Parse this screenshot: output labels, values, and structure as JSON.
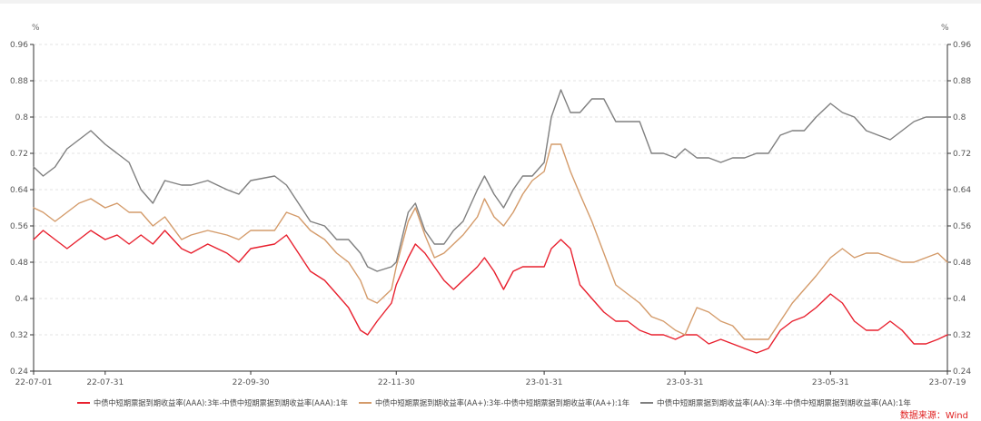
{
  "chart_data": {
    "type": "line",
    "y_unit_left": "%",
    "y_unit_right": "%",
    "ylim": [
      0.24,
      0.96
    ],
    "yticks": [
      0.24,
      0.32,
      0.4,
      0.48,
      0.56,
      0.64,
      0.72,
      0.8,
      0.88,
      0.96
    ],
    "ytick_labels": [
      "0.24",
      "0.32",
      "0.4",
      "0.48",
      "0.56",
      "0.64",
      "0.72",
      "0.8",
      "0.88",
      "0.96"
    ],
    "x_range": [
      "2022-07-01",
      "2023-07-19"
    ],
    "xticks": [
      "2022-07-01",
      "2022-07-31",
      "2022-09-30",
      "2022-11-30",
      "2023-01-31",
      "2023-03-31",
      "2023-05-31",
      "2023-07-19"
    ],
    "xtick_labels": [
      "22-07-01",
      "22-07-31",
      "22-09-30",
      "22-11-30",
      "23-01-31",
      "23-03-31",
      "23-05-31",
      "23-07-19"
    ],
    "grid": true,
    "legend_position": "bottom",
    "series": [
      {
        "name": "中债中短期票据到期收益率(AAA):3年-中债中短期票据到期收益率(AAA):1年",
        "color": "#e8202e",
        "points": [
          [
            "2022-07-01",
            0.53
          ],
          [
            "2022-07-05",
            0.55
          ],
          [
            "2022-07-10",
            0.53
          ],
          [
            "2022-07-15",
            0.51
          ],
          [
            "2022-07-20",
            0.53
          ],
          [
            "2022-07-25",
            0.55
          ],
          [
            "2022-07-31",
            0.53
          ],
          [
            "2022-08-05",
            0.54
          ],
          [
            "2022-08-10",
            0.52
          ],
          [
            "2022-08-15",
            0.54
          ],
          [
            "2022-08-20",
            0.52
          ],
          [
            "2022-08-25",
            0.55
          ],
          [
            "2022-09-01",
            0.51
          ],
          [
            "2022-09-05",
            0.5
          ],
          [
            "2022-09-12",
            0.52
          ],
          [
            "2022-09-20",
            0.5
          ],
          [
            "2022-09-25",
            0.48
          ],
          [
            "2022-09-30",
            0.51
          ],
          [
            "2022-10-10",
            0.52
          ],
          [
            "2022-10-15",
            0.54
          ],
          [
            "2022-10-20",
            0.5
          ],
          [
            "2022-10-25",
            0.46
          ],
          [
            "2022-10-31",
            0.44
          ],
          [
            "2022-11-05",
            0.41
          ],
          [
            "2022-11-10",
            0.38
          ],
          [
            "2022-11-15",
            0.33
          ],
          [
            "2022-11-18",
            0.32
          ],
          [
            "2022-11-22",
            0.35
          ],
          [
            "2022-11-28",
            0.39
          ],
          [
            "2022-11-30",
            0.43
          ],
          [
            "2022-12-05",
            0.49
          ],
          [
            "2022-12-08",
            0.52
          ],
          [
            "2022-12-12",
            0.5
          ],
          [
            "2022-12-16",
            0.47
          ],
          [
            "2022-12-20",
            0.44
          ],
          [
            "2022-12-24",
            0.42
          ],
          [
            "2022-12-28",
            0.44
          ],
          [
            "2023-01-03",
            0.47
          ],
          [
            "2023-01-06",
            0.49
          ],
          [
            "2023-01-10",
            0.46
          ],
          [
            "2023-01-14",
            0.42
          ],
          [
            "2023-01-18",
            0.46
          ],
          [
            "2023-01-22",
            0.47
          ],
          [
            "2023-01-26",
            0.47
          ],
          [
            "2023-01-31",
            0.47
          ],
          [
            "2023-02-03",
            0.51
          ],
          [
            "2023-02-07",
            0.53
          ],
          [
            "2023-02-11",
            0.51
          ],
          [
            "2023-02-15",
            0.43
          ],
          [
            "2023-02-20",
            0.4
          ],
          [
            "2023-02-25",
            0.37
          ],
          [
            "2023-03-02",
            0.35
          ],
          [
            "2023-03-07",
            0.35
          ],
          [
            "2023-03-12",
            0.33
          ],
          [
            "2023-03-17",
            0.32
          ],
          [
            "2023-03-22",
            0.32
          ],
          [
            "2023-03-27",
            0.31
          ],
          [
            "2023-03-31",
            0.32
          ],
          [
            "2023-04-05",
            0.32
          ],
          [
            "2023-04-10",
            0.3
          ],
          [
            "2023-04-15",
            0.31
          ],
          [
            "2023-04-20",
            0.3
          ],
          [
            "2023-04-25",
            0.29
          ],
          [
            "2023-04-30",
            0.28
          ],
          [
            "2023-05-05",
            0.29
          ],
          [
            "2023-05-10",
            0.33
          ],
          [
            "2023-05-15",
            0.35
          ],
          [
            "2023-05-20",
            0.36
          ],
          [
            "2023-05-25",
            0.38
          ],
          [
            "2023-05-31",
            0.41
          ],
          [
            "2023-06-05",
            0.39
          ],
          [
            "2023-06-10",
            0.35
          ],
          [
            "2023-06-15",
            0.33
          ],
          [
            "2023-06-20",
            0.33
          ],
          [
            "2023-06-25",
            0.35
          ],
          [
            "2023-06-30",
            0.33
          ],
          [
            "2023-07-05",
            0.3
          ],
          [
            "2023-07-10",
            0.3
          ],
          [
            "2023-07-15",
            0.31
          ],
          [
            "2023-07-19",
            0.32
          ]
        ]
      },
      {
        "name": "中债中短期票据到期收益率(AA+):3年-中债中短期票据到期收益率(AA+):1年",
        "color": "#d49b6a",
        "points": [
          [
            "2022-07-01",
            0.6
          ],
          [
            "2022-07-05",
            0.59
          ],
          [
            "2022-07-10",
            0.57
          ],
          [
            "2022-07-15",
            0.59
          ],
          [
            "2022-07-20",
            0.61
          ],
          [
            "2022-07-25",
            0.62
          ],
          [
            "2022-07-31",
            0.6
          ],
          [
            "2022-08-05",
            0.61
          ],
          [
            "2022-08-10",
            0.59
          ],
          [
            "2022-08-15",
            0.59
          ],
          [
            "2022-08-20",
            0.56
          ],
          [
            "2022-08-25",
            0.58
          ],
          [
            "2022-09-01",
            0.53
          ],
          [
            "2022-09-05",
            0.54
          ],
          [
            "2022-09-12",
            0.55
          ],
          [
            "2022-09-20",
            0.54
          ],
          [
            "2022-09-25",
            0.53
          ],
          [
            "2022-09-30",
            0.55
          ],
          [
            "2022-10-10",
            0.55
          ],
          [
            "2022-10-15",
            0.59
          ],
          [
            "2022-10-20",
            0.58
          ],
          [
            "2022-10-25",
            0.55
          ],
          [
            "2022-10-31",
            0.53
          ],
          [
            "2022-11-05",
            0.5
          ],
          [
            "2022-11-10",
            0.48
          ],
          [
            "2022-11-15",
            0.44
          ],
          [
            "2022-11-18",
            0.4
          ],
          [
            "2022-11-22",
            0.39
          ],
          [
            "2022-11-28",
            0.42
          ],
          [
            "2022-11-30",
            0.47
          ],
          [
            "2022-12-05",
            0.57
          ],
          [
            "2022-12-08",
            0.6
          ],
          [
            "2022-12-12",
            0.54
          ],
          [
            "2022-12-16",
            0.49
          ],
          [
            "2022-12-20",
            0.5
          ],
          [
            "2022-12-24",
            0.52
          ],
          [
            "2022-12-28",
            0.54
          ],
          [
            "2023-01-03",
            0.58
          ],
          [
            "2023-01-06",
            0.62
          ],
          [
            "2023-01-10",
            0.58
          ],
          [
            "2023-01-14",
            0.56
          ],
          [
            "2023-01-18",
            0.59
          ],
          [
            "2023-01-22",
            0.63
          ],
          [
            "2023-01-26",
            0.66
          ],
          [
            "2023-01-31",
            0.68
          ],
          [
            "2023-02-03",
            0.74
          ],
          [
            "2023-02-07",
            0.74
          ],
          [
            "2023-02-11",
            0.68
          ],
          [
            "2023-02-15",
            0.63
          ],
          [
            "2023-02-20",
            0.57
          ],
          [
            "2023-02-25",
            0.5
          ],
          [
            "2023-03-02",
            0.43
          ],
          [
            "2023-03-07",
            0.41
          ],
          [
            "2023-03-12",
            0.39
          ],
          [
            "2023-03-17",
            0.36
          ],
          [
            "2023-03-22",
            0.35
          ],
          [
            "2023-03-27",
            0.33
          ],
          [
            "2023-03-31",
            0.32
          ],
          [
            "2023-04-05",
            0.38
          ],
          [
            "2023-04-10",
            0.37
          ],
          [
            "2023-04-15",
            0.35
          ],
          [
            "2023-04-20",
            0.34
          ],
          [
            "2023-04-25",
            0.31
          ],
          [
            "2023-04-30",
            0.31
          ],
          [
            "2023-05-05",
            0.31
          ],
          [
            "2023-05-10",
            0.35
          ],
          [
            "2023-05-15",
            0.39
          ],
          [
            "2023-05-20",
            0.42
          ],
          [
            "2023-05-25",
            0.45
          ],
          [
            "2023-05-31",
            0.49
          ],
          [
            "2023-06-05",
            0.51
          ],
          [
            "2023-06-10",
            0.49
          ],
          [
            "2023-06-15",
            0.5
          ],
          [
            "2023-06-20",
            0.5
          ],
          [
            "2023-06-25",
            0.49
          ],
          [
            "2023-06-30",
            0.48
          ],
          [
            "2023-07-05",
            0.48
          ],
          [
            "2023-07-10",
            0.49
          ],
          [
            "2023-07-15",
            0.5
          ],
          [
            "2023-07-19",
            0.48
          ]
        ]
      },
      {
        "name": "中债中短期票据到期收益率(AA):3年-中债中短期票据到期收益率(AA):1年",
        "color": "#7f7f7f",
        "points": [
          [
            "2022-07-01",
            0.69
          ],
          [
            "2022-07-05",
            0.67
          ],
          [
            "2022-07-10",
            0.69
          ],
          [
            "2022-07-15",
            0.73
          ],
          [
            "2022-07-20",
            0.75
          ],
          [
            "2022-07-25",
            0.77
          ],
          [
            "2022-07-31",
            0.74
          ],
          [
            "2022-08-05",
            0.72
          ],
          [
            "2022-08-10",
            0.7
          ],
          [
            "2022-08-15",
            0.64
          ],
          [
            "2022-08-20",
            0.61
          ],
          [
            "2022-08-25",
            0.66
          ],
          [
            "2022-09-01",
            0.65
          ],
          [
            "2022-09-05",
            0.65
          ],
          [
            "2022-09-12",
            0.66
          ],
          [
            "2022-09-20",
            0.64
          ],
          [
            "2022-09-25",
            0.63
          ],
          [
            "2022-09-30",
            0.66
          ],
          [
            "2022-10-10",
            0.67
          ],
          [
            "2022-10-15",
            0.65
          ],
          [
            "2022-10-20",
            0.61
          ],
          [
            "2022-10-25",
            0.57
          ],
          [
            "2022-10-31",
            0.56
          ],
          [
            "2022-11-05",
            0.53
          ],
          [
            "2022-11-10",
            0.53
          ],
          [
            "2022-11-15",
            0.5
          ],
          [
            "2022-11-18",
            0.47
          ],
          [
            "2022-11-22",
            0.46
          ],
          [
            "2022-11-28",
            0.47
          ],
          [
            "2022-11-30",
            0.48
          ],
          [
            "2022-12-05",
            0.59
          ],
          [
            "2022-12-08",
            0.61
          ],
          [
            "2022-12-12",
            0.55
          ],
          [
            "2022-12-16",
            0.52
          ],
          [
            "2022-12-20",
            0.52
          ],
          [
            "2022-12-24",
            0.55
          ],
          [
            "2022-12-28",
            0.57
          ],
          [
            "2023-01-03",
            0.64
          ],
          [
            "2023-01-06",
            0.67
          ],
          [
            "2023-01-10",
            0.63
          ],
          [
            "2023-01-14",
            0.6
          ],
          [
            "2023-01-18",
            0.64
          ],
          [
            "2023-01-22",
            0.67
          ],
          [
            "2023-01-26",
            0.67
          ],
          [
            "2023-01-31",
            0.7
          ],
          [
            "2023-02-03",
            0.8
          ],
          [
            "2023-02-07",
            0.86
          ],
          [
            "2023-02-11",
            0.81
          ],
          [
            "2023-02-15",
            0.81
          ],
          [
            "2023-02-20",
            0.84
          ],
          [
            "2023-02-25",
            0.84
          ],
          [
            "2023-03-02",
            0.79
          ],
          [
            "2023-03-07",
            0.79
          ],
          [
            "2023-03-12",
            0.79
          ],
          [
            "2023-03-17",
            0.72
          ],
          [
            "2023-03-22",
            0.72
          ],
          [
            "2023-03-27",
            0.71
          ],
          [
            "2023-03-31",
            0.73
          ],
          [
            "2023-04-05",
            0.71
          ],
          [
            "2023-04-10",
            0.71
          ],
          [
            "2023-04-15",
            0.7
          ],
          [
            "2023-04-20",
            0.71
          ],
          [
            "2023-04-25",
            0.71
          ],
          [
            "2023-04-30",
            0.72
          ],
          [
            "2023-05-05",
            0.72
          ],
          [
            "2023-05-10",
            0.76
          ],
          [
            "2023-05-15",
            0.77
          ],
          [
            "2023-05-20",
            0.77
          ],
          [
            "2023-05-25",
            0.8
          ],
          [
            "2023-05-31",
            0.83
          ],
          [
            "2023-06-05",
            0.81
          ],
          [
            "2023-06-10",
            0.8
          ],
          [
            "2023-06-15",
            0.77
          ],
          [
            "2023-06-20",
            0.76
          ],
          [
            "2023-06-25",
            0.75
          ],
          [
            "2023-06-30",
            0.77
          ],
          [
            "2023-07-05",
            0.79
          ],
          [
            "2023-07-10",
            0.8
          ],
          [
            "2023-07-15",
            0.8
          ],
          [
            "2023-07-19",
            0.8
          ]
        ]
      }
    ]
  },
  "source_label": "数据来源：Wind"
}
